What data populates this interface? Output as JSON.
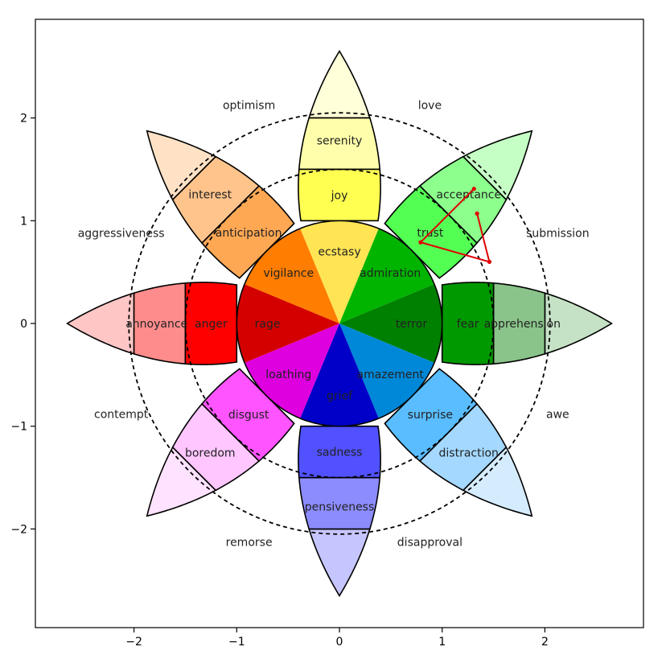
{
  "chart_data": {
    "type": "plutchik-wheel",
    "xlim": [
      -2.96,
      2.96
    ],
    "ylim": [
      -2.96,
      2.96
    ],
    "xticks": [
      {
        "value": -2,
        "label": "−2"
      },
      {
        "value": -1,
        "label": "−1"
      },
      {
        "value": 0,
        "label": "0"
      },
      {
        "value": 1,
        "label": "1"
      },
      {
        "value": 2,
        "label": "2"
      }
    ],
    "yticks": [
      {
        "value": 2,
        "label": "2"
      },
      {
        "value": 1,
        "label": "1"
      },
      {
        "value": 0,
        "label": "0"
      },
      {
        "value": -1,
        "label": "−1"
      },
      {
        "value": -2,
        "label": "−2"
      }
    ],
    "petal_length": 2.65,
    "petal_halfwidth": 0.4,
    "ring_boundaries": [
      1.0,
      1.5,
      2.0,
      2.5
    ],
    "dashed_circles": [
      1.5,
      2.05
    ],
    "petals": [
      {
        "angle": 90,
        "colors": [
          "#ffe554",
          "#ffff52",
          "#ffffab",
          "#ffffd9"
        ],
        "labels": [
          "ecstasy",
          "joy",
          "serenity"
        ]
      },
      {
        "angle": 45,
        "colors": [
          "#00b400",
          "#54ff54",
          "#8cff8c",
          "#c6ffc6"
        ],
        "labels": [
          "admiration",
          "trust",
          "acceptance"
        ]
      },
      {
        "angle": 0,
        "colors": [
          "#008000",
          "#009900",
          "#8ac48a",
          "#c6e2c6"
        ],
        "labels": [
          "terror",
          "fear",
          "apprehension"
        ]
      },
      {
        "angle": -45,
        "colors": [
          "#0088d8",
          "#59bdff",
          "#a4d8ff",
          "#d5ecff"
        ],
        "labels": [
          "amazement",
          "surprise",
          "distraction"
        ]
      },
      {
        "angle": -90,
        "colors": [
          "#0000c8",
          "#5151ff",
          "#8c8cff",
          "#c6c6ff"
        ],
        "labels": [
          "grief",
          "sadness",
          "pensiveness"
        ]
      },
      {
        "angle": -135,
        "colors": [
          "#de00de",
          "#ff54ff",
          "#ffc6ff",
          "#ffe2ff"
        ],
        "labels": [
          "loathing",
          "disgust",
          "boredom"
        ]
      },
      {
        "angle": 180,
        "colors": [
          "#d40000",
          "#ff0000",
          "#ff8c8c",
          "#ffc6c6"
        ],
        "labels": [
          "rage",
          "anger",
          "annoyance"
        ]
      },
      {
        "angle": 135,
        "colors": [
          "#ff7d00",
          "#ffa854",
          "#ffc48c",
          "#ffe2c6"
        ],
        "labels": [
          "vigilance",
          "anticipation",
          "interest"
        ]
      }
    ],
    "dyads": [
      {
        "angle": 112.5,
        "label": "optimism"
      },
      {
        "angle": 67.5,
        "label": "love"
      },
      {
        "angle": 22.5,
        "label": "submission"
      },
      {
        "angle": -22.5,
        "label": "awe"
      },
      {
        "angle": -67.5,
        "label": "disapproval"
      },
      {
        "angle": -112.5,
        "label": "remorse"
      },
      {
        "angle": -157.5,
        "label": "contempt"
      },
      {
        "angle": 157.5,
        "label": "aggressiveness"
      }
    ],
    "trajectory": {
      "color": "#e00000",
      "points": [
        [
          1.31,
          1.31
        ],
        [
          0.79,
          0.79
        ],
        [
          1.46,
          0.6
        ],
        [
          1.34,
          1.07
        ]
      ]
    }
  }
}
